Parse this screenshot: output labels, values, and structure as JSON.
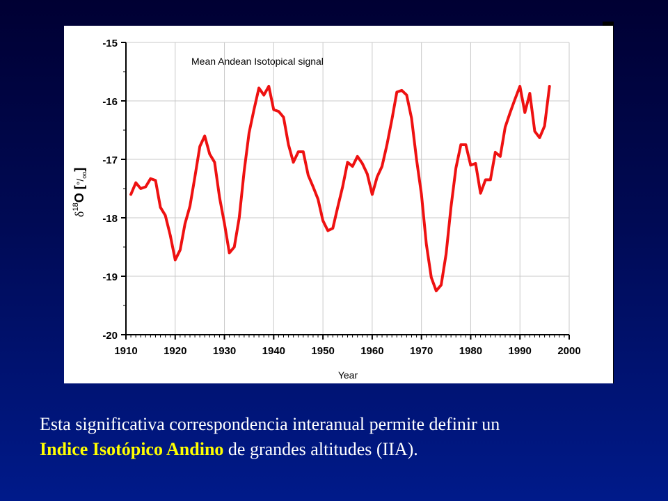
{
  "chart_data": {
    "type": "line",
    "title": "Mean Andean Isotopical signal",
    "xlabel": "Year",
    "ylabel_prefix": "δ",
    "ylabel_sup": "18",
    "ylabel_main": "O [",
    "ylabel_unit": "°/",
    "ylabel_sub": "oo",
    "ylabel_close": "]",
    "xlim": [
      1910,
      2000
    ],
    "ylim": [
      -20,
      -15
    ],
    "x_ticks": [
      1910,
      1920,
      1930,
      1940,
      1950,
      1960,
      1970,
      1980,
      1990,
      2000
    ],
    "y_ticks": [
      -15,
      -16,
      -17,
      -18,
      -19,
      -20
    ],
    "grid": true,
    "line_color": "#ee1111",
    "series": [
      {
        "x": [
          1911,
          1912,
          1913,
          1914,
          1915,
          1916,
          1917,
          1918,
          1919,
          1920,
          1921,
          1922,
          1923,
          1924,
          1925,
          1926,
          1927,
          1928,
          1929,
          1930,
          1931,
          1932,
          1933,
          1934,
          1935,
          1936,
          1937,
          1938,
          1939,
          1940,
          1941,
          1942,
          1943,
          1944,
          1945,
          1946,
          1947,
          1948,
          1949,
          1950,
          1951,
          1952,
          1953,
          1954,
          1955,
          1956,
          1957,
          1958,
          1959,
          1960,
          1961,
          1962,
          1963,
          1964,
          1965,
          1966,
          1967,
          1968,
          1969,
          1970,
          1971,
          1972,
          1973,
          1974,
          1975,
          1976,
          1977,
          1978,
          1979,
          1980,
          1981,
          1982,
          1983,
          1984,
          1985,
          1986,
          1987,
          1988,
          1989,
          1990,
          1991,
          1992,
          1993,
          1994,
          1995,
          1996
        ],
        "values": [
          -17.6,
          -17.4,
          -17.5,
          -17.47,
          -17.33,
          -17.36,
          -17.82,
          -17.96,
          -18.3,
          -18.72,
          -18.55,
          -18.1,
          -17.8,
          -17.3,
          -16.78,
          -16.6,
          -16.91,
          -17.05,
          -17.65,
          -18.1,
          -18.6,
          -18.5,
          -18.0,
          -17.2,
          -16.55,
          -16.15,
          -15.78,
          -15.9,
          -15.75,
          -16.15,
          -16.18,
          -16.28,
          -16.75,
          -17.05,
          -16.87,
          -16.87,
          -17.27,
          -17.47,
          -17.68,
          -18.05,
          -18.22,
          -18.18,
          -17.82,
          -17.47,
          -17.05,
          -17.12,
          -16.95,
          -17.07,
          -17.25,
          -17.6,
          -17.3,
          -17.12,
          -16.75,
          -16.32,
          -15.85,
          -15.82,
          -15.9,
          -16.3,
          -17.0,
          -17.6,
          -18.45,
          -19.02,
          -19.25,
          -19.15,
          -18.62,
          -17.82,
          -17.15,
          -16.75,
          -16.75,
          -17.1,
          -17.07,
          -17.58,
          -17.35,
          -17.35,
          -16.88,
          -16.95,
          -16.45,
          -16.2,
          -15.97,
          -15.75,
          -16.2,
          -15.87,
          -16.52,
          -16.63,
          -16.43,
          -15.75
        ]
      }
    ]
  },
  "caption": {
    "line1": "Esta significativa correspondencia interanual permite definir un",
    "highlight_a": "Indice Isotópico Andino",
    "line2_rest": " de grandes altitudes (IIA)."
  }
}
